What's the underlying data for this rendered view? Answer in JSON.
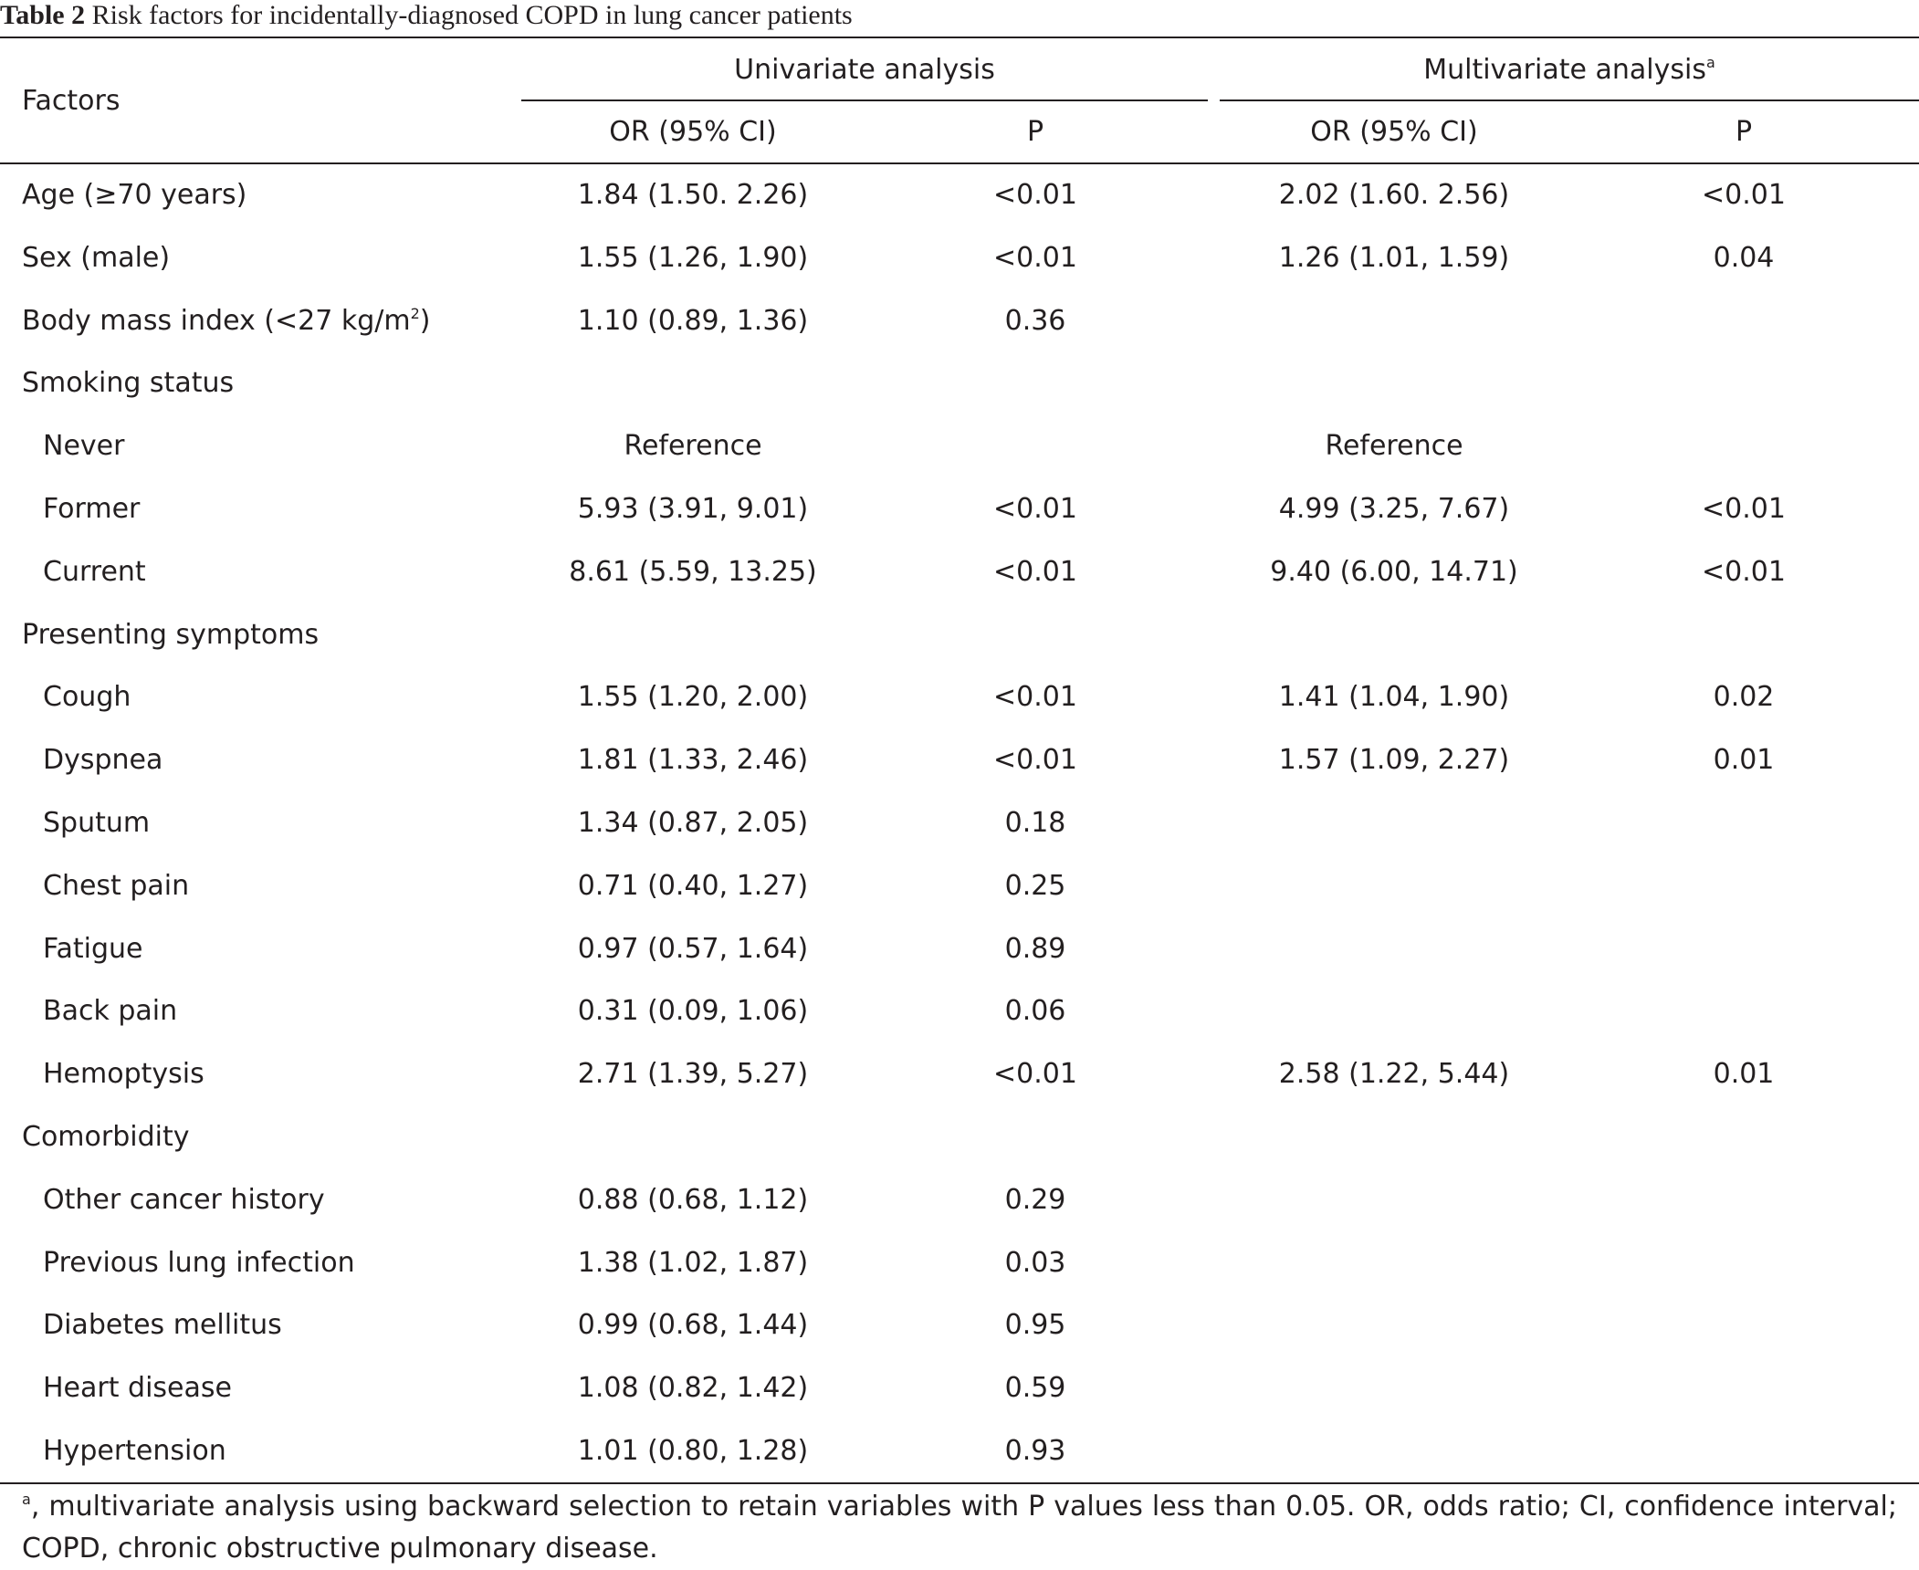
{
  "caption": {
    "label": "Table 2",
    "title": "Risk factors for incidentally-diagnosed COPD in lung cancer patients"
  },
  "header": {
    "factors": "Factors",
    "univariate": "Univariate analysis",
    "multivariate": "Multivariate analysis",
    "multivariate_sup": "a",
    "or_ci": "OR (95% CI)",
    "p": "P"
  },
  "rows": [
    {
      "label": "Age (≥70 years)",
      "label_sup": "",
      "label_tail": "",
      "indent": false,
      "uni_or": "1.84 (1.50. 2.26)",
      "uni_p": "<0.01",
      "multi_or": "2.02 (1.60. 2.56)",
      "multi_p": "<0.01"
    },
    {
      "label": "Sex (male)",
      "label_sup": "",
      "label_tail": "",
      "indent": false,
      "uni_or": "1.55 (1.26, 1.90)",
      "uni_p": "<0.01",
      "multi_or": "1.26 (1.01, 1.59)",
      "multi_p": "0.04"
    },
    {
      "label": "Body mass index (<27 kg/m",
      "label_sup": "2",
      "label_tail": ")",
      "indent": false,
      "uni_or": "1.10 (0.89, 1.36)",
      "uni_p": "0.36",
      "multi_or": "",
      "multi_p": ""
    },
    {
      "label": "Smoking status",
      "label_sup": "",
      "label_tail": "",
      "indent": false,
      "uni_or": "",
      "uni_p": "",
      "multi_or": "",
      "multi_p": ""
    },
    {
      "label": "Never",
      "label_sup": "",
      "label_tail": "",
      "indent": true,
      "uni_or": "Reference",
      "uni_p": "",
      "multi_or": "Reference",
      "multi_p": ""
    },
    {
      "label": "Former",
      "label_sup": "",
      "label_tail": "",
      "indent": true,
      "uni_or": "5.93 (3.91, 9.01)",
      "uni_p": "<0.01",
      "multi_or": "4.99 (3.25, 7.67)",
      "multi_p": "<0.01"
    },
    {
      "label": "Current",
      "label_sup": "",
      "label_tail": "",
      "indent": true,
      "uni_or": "8.61 (5.59, 13.25)",
      "uni_p": "<0.01",
      "multi_or": "9.40 (6.00, 14.71)",
      "multi_p": "<0.01"
    },
    {
      "label": "Presenting symptoms",
      "label_sup": "",
      "label_tail": "",
      "indent": false,
      "uni_or": "",
      "uni_p": "",
      "multi_or": "",
      "multi_p": ""
    },
    {
      "label": "Cough",
      "label_sup": "",
      "label_tail": "",
      "indent": true,
      "uni_or": "1.55 (1.20, 2.00)",
      "uni_p": "<0.01",
      "multi_or": "1.41 (1.04, 1.90)",
      "multi_p": "0.02"
    },
    {
      "label": "Dyspnea",
      "label_sup": "",
      "label_tail": "",
      "indent": true,
      "uni_or": "1.81 (1.33, 2.46)",
      "uni_p": "<0.01",
      "multi_or": "1.57 (1.09, 2.27)",
      "multi_p": "0.01"
    },
    {
      "label": "Sputum",
      "label_sup": "",
      "label_tail": "",
      "indent": true,
      "uni_or": "1.34 (0.87, 2.05)",
      "uni_p": "0.18",
      "multi_or": "",
      "multi_p": ""
    },
    {
      "label": "Chest pain",
      "label_sup": "",
      "label_tail": "",
      "indent": true,
      "uni_or": "0.71 (0.40, 1.27)",
      "uni_p": "0.25",
      "multi_or": "",
      "multi_p": ""
    },
    {
      "label": "Fatigue",
      "label_sup": "",
      "label_tail": "",
      "indent": true,
      "uni_or": "0.97 (0.57, 1.64)",
      "uni_p": "0.89",
      "multi_or": "",
      "multi_p": ""
    },
    {
      "label": "Back pain",
      "label_sup": "",
      "label_tail": "",
      "indent": true,
      "uni_or": "0.31 (0.09, 1.06)",
      "uni_p": "0.06",
      "multi_or": "",
      "multi_p": ""
    },
    {
      "label": "Hemoptysis",
      "label_sup": "",
      "label_tail": "",
      "indent": true,
      "uni_or": "2.71 (1.39, 5.27)",
      "uni_p": "<0.01",
      "multi_or": "2.58 (1.22, 5.44)",
      "multi_p": "0.01"
    },
    {
      "label": "Comorbidity",
      "label_sup": "",
      "label_tail": "",
      "indent": false,
      "uni_or": "",
      "uni_p": "",
      "multi_or": "",
      "multi_p": ""
    },
    {
      "label": "Other cancer history",
      "label_sup": "",
      "label_tail": "",
      "indent": true,
      "uni_or": "0.88 (0.68, 1.12)",
      "uni_p": "0.29",
      "multi_or": "",
      "multi_p": ""
    },
    {
      "label": "Previous lung infection",
      "label_sup": "",
      "label_tail": "",
      "indent": true,
      "uni_or": "1.38 (1.02, 1.87)",
      "uni_p": "0.03",
      "multi_or": "",
      "multi_p": ""
    },
    {
      "label": "Diabetes mellitus",
      "label_sup": "",
      "label_tail": "",
      "indent": true,
      "uni_or": "0.99 (0.68, 1.44)",
      "uni_p": "0.95",
      "multi_or": "",
      "multi_p": ""
    },
    {
      "label": "Heart disease",
      "label_sup": "",
      "label_tail": "",
      "indent": true,
      "uni_or": "1.08 (0.82, 1.42)",
      "uni_p": "0.59",
      "multi_or": "",
      "multi_p": ""
    },
    {
      "label": "Hypertension",
      "label_sup": "",
      "label_tail": "",
      "indent": true,
      "uni_or": "1.01 (0.80, 1.28)",
      "uni_p": "0.93",
      "multi_or": "",
      "multi_p": ""
    }
  ],
  "footnote": {
    "sup": "a",
    "text": ", multivariate analysis using backward selection to retain variables with P values less than 0.05. OR, odds ratio; CI, confidence interval; COPD, chronic obstructive pulmonary disease."
  }
}
